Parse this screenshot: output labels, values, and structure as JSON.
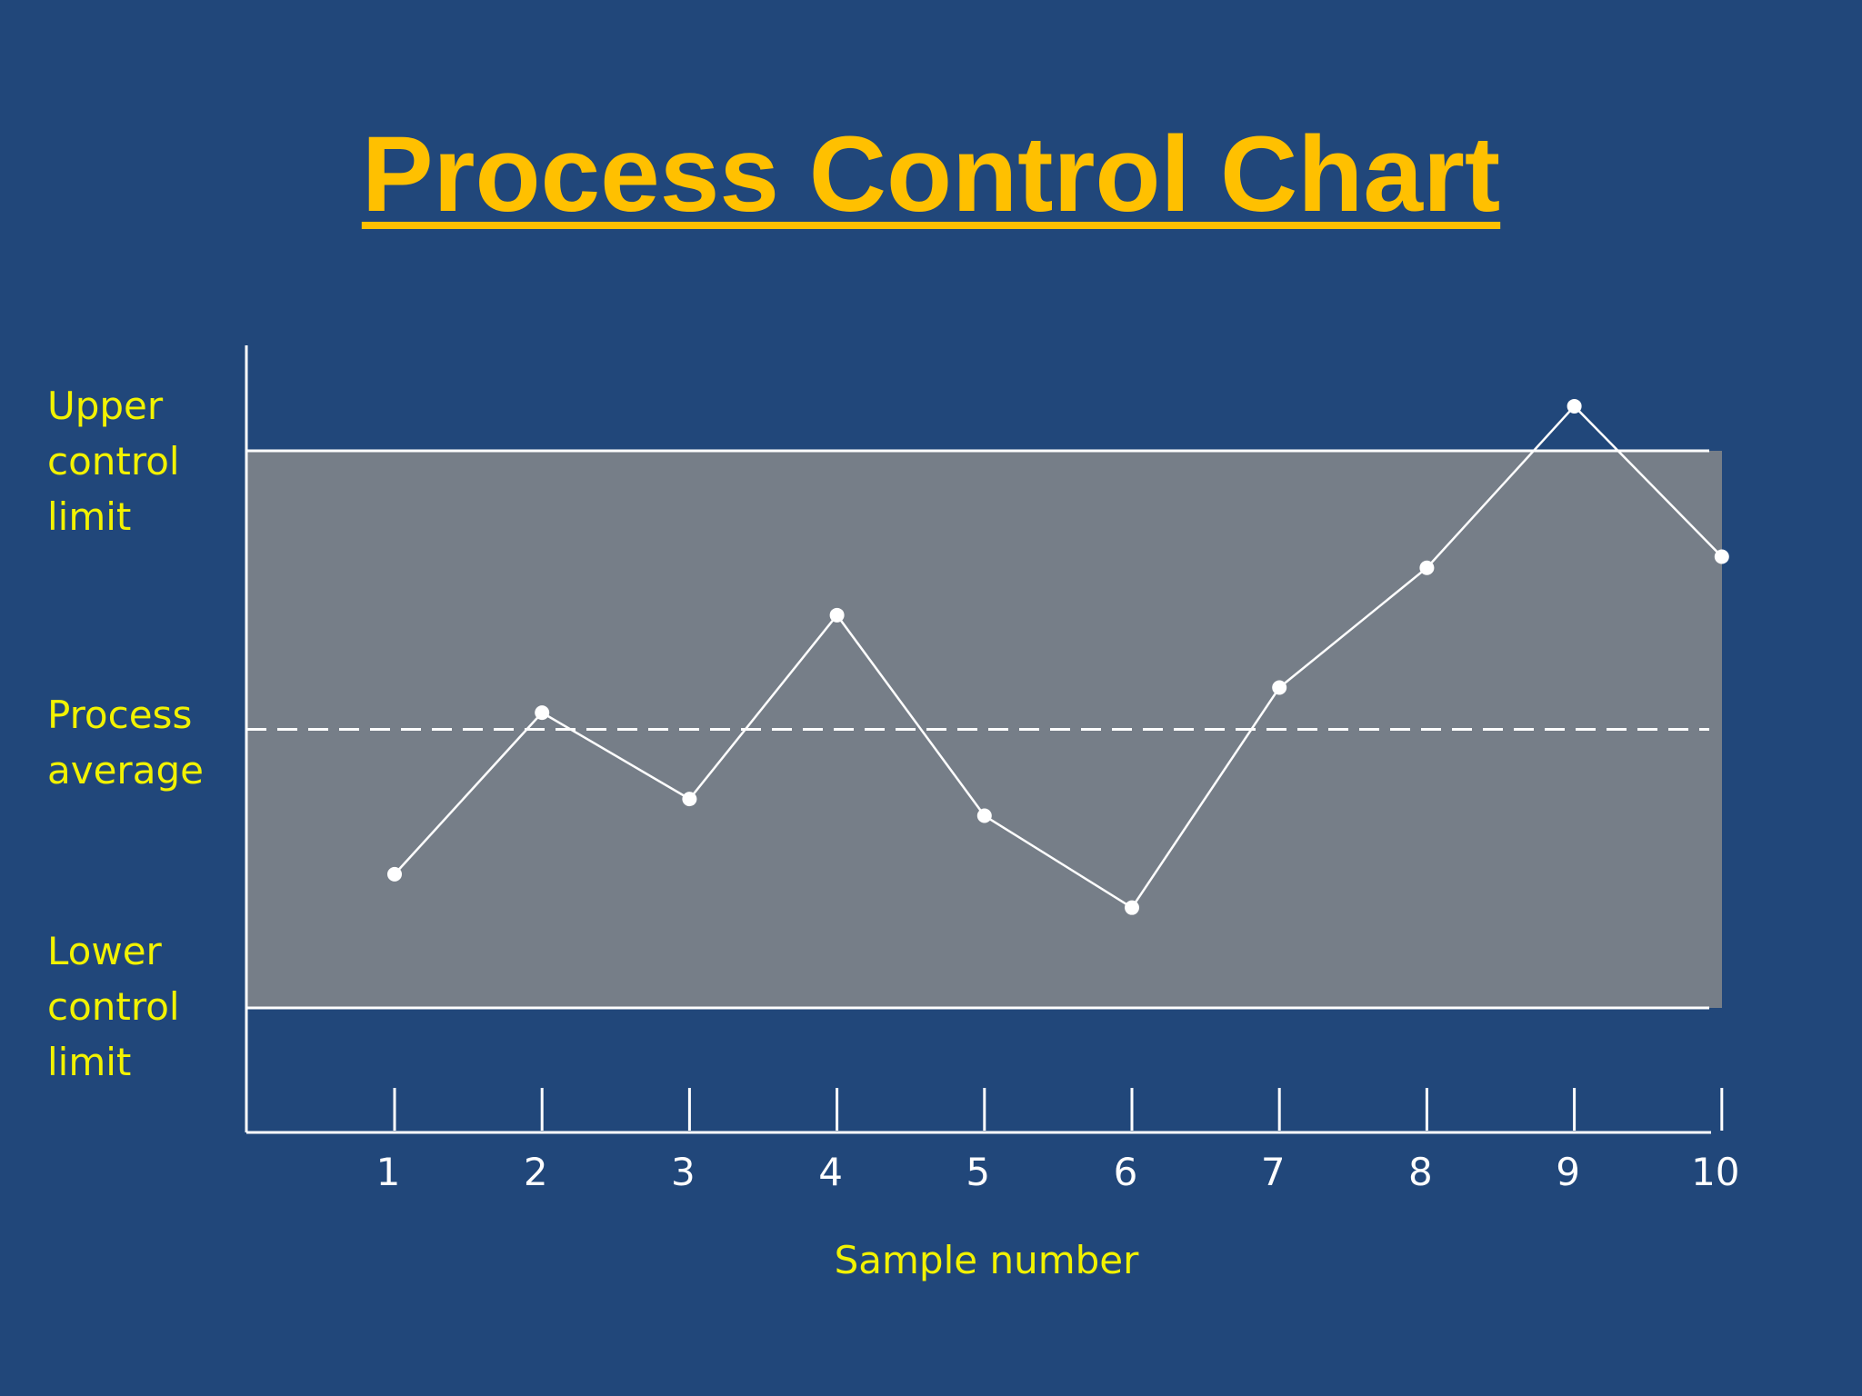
{
  "chart_data": {
    "type": "line",
    "title": "Process Control Chart",
    "xlabel": "Sample number",
    "ylabel": "",
    "categories": [
      "1",
      "2",
      "3",
      "4",
      "5",
      "6",
      "7",
      "8",
      "9",
      "10"
    ],
    "x": [
      1,
      2,
      3,
      4,
      5,
      6,
      7,
      8,
      9,
      10
    ],
    "values": [
      -0.52,
      0.06,
      -0.25,
      0.41,
      -0.31,
      -0.64,
      0.15,
      0.58,
      1.16,
      0.62
    ],
    "control_limits": {
      "upper": 1.0,
      "average": 0.0,
      "lower": -1.0,
      "upper_label": "Upper\ncontrol\nlimit",
      "average_label": "Process\naverage",
      "lower_label": "Lower\ncontrol\nlimit"
    },
    "grid": false,
    "legend": "none"
  },
  "colors": {
    "background": "#21477a",
    "title": "#ffc000",
    "label": "#f2f200",
    "control_band": "#767e88",
    "line": "#ffffff"
  }
}
